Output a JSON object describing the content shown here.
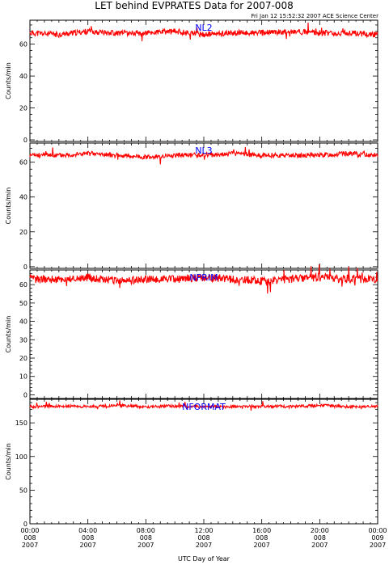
{
  "title": "LET behind EVPRATES Data for 2007-008",
  "subtitle": "Fri Jan 12 15:52:32 2007 ACE Science Center",
  "xlabel": "UTC Day of Year",
  "colors": {
    "trace": "#ff0000",
    "panel_label": "#0000ff",
    "axis": "#000000"
  },
  "chart_data": [
    {
      "type": "line",
      "name": "NL2",
      "ylabel": "Counts/min",
      "ylim": [
        -1,
        75
      ],
      "yticks": [
        0,
        20,
        40,
        60
      ],
      "xlim_hours": [
        0,
        24
      ],
      "baseline": 67,
      "noise": 1.8,
      "seed": 11,
      "x_hours": [
        0,
        2,
        4,
        6,
        8,
        10,
        12,
        14,
        16,
        18,
        20,
        22,
        24
      ],
      "values": [
        67,
        66,
        68,
        67,
        67,
        68,
        66,
        67,
        67,
        68,
        67,
        67,
        66
      ]
    },
    {
      "type": "line",
      "name": "NL3",
      "ylabel": "Counts/min",
      "ylim": [
        -1,
        71
      ],
      "yticks": [
        0,
        20,
        40,
        60
      ],
      "xlim_hours": [
        0,
        24
      ],
      "baseline": 64,
      "noise": 1.4,
      "seed": 23,
      "x_hours": [
        0,
        2,
        4,
        6,
        8,
        10,
        12,
        14,
        16,
        18,
        20,
        22,
        24
      ],
      "values": [
        64,
        64,
        65,
        64,
        63,
        64,
        64,
        65,
        64,
        64,
        64,
        65,
        64
      ]
    },
    {
      "type": "line",
      "name": "NPRIM",
      "ylabel": "Counts/min",
      "ylim": [
        -2,
        68
      ],
      "yticks": [
        0,
        10,
        20,
        30,
        40,
        50,
        60
      ],
      "xlim_hours": [
        0,
        24
      ],
      "baseline": 63,
      "noise": 2.2,
      "seed": 37,
      "x_hours": [
        0,
        2,
        4,
        6,
        8,
        10,
        12,
        14,
        16,
        18,
        20,
        22,
        24
      ],
      "values": [
        63,
        63,
        64,
        62,
        63,
        63,
        64,
        63,
        62,
        63,
        64,
        63,
        63
      ]
    },
    {
      "type": "line",
      "name": "NFORMAT",
      "ylabel": "Counts/min",
      "ylim": [
        0,
        185
      ],
      "yticks": [
        0,
        50,
        100,
        150
      ],
      "xlim_hours": [
        0,
        24
      ],
      "baseline": 174,
      "noise": 2.2,
      "seed": 53,
      "x_hours": [
        0,
        2,
        4,
        6,
        8,
        10,
        12,
        14,
        16,
        18,
        20,
        22,
        24
      ],
      "values": [
        174,
        175,
        174,
        176,
        174,
        175,
        174,
        174,
        175,
        174,
        176,
        174,
        175
      ]
    }
  ],
  "xticks": [
    {
      "time": "00:00",
      "doy": "008",
      "year": "2007"
    },
    {
      "time": "04:00",
      "doy": "008",
      "year": "2007"
    },
    {
      "time": "08:00",
      "doy": "008",
      "year": "2007"
    },
    {
      "time": "12:00",
      "doy": "008",
      "year": "2007"
    },
    {
      "time": "16:00",
      "doy": "008",
      "year": "2007"
    },
    {
      "time": "20:00",
      "doy": "008",
      "year": "2007"
    },
    {
      "time": "00:00",
      "doy": "009",
      "year": "2007"
    }
  ]
}
